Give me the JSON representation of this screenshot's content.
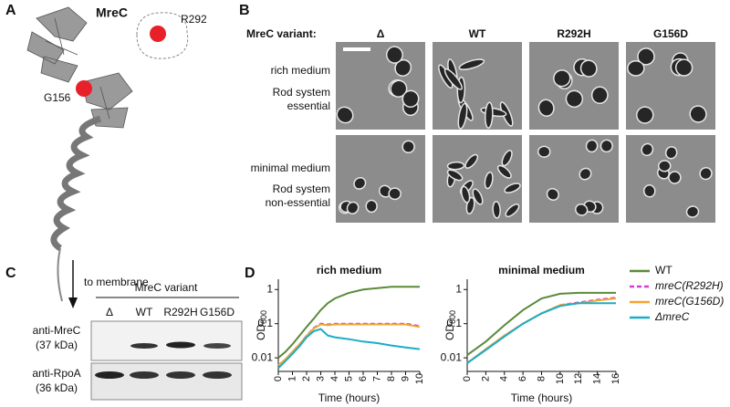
{
  "panel_a": {
    "letter": "A",
    "title": "MreC",
    "sites": [
      "R292",
      "G156"
    ],
    "note": "to membrane"
  },
  "panel_b": {
    "letter": "B",
    "column_header": "MreC variant:",
    "columns": [
      "Δ",
      "WT",
      "R292H",
      "G156D"
    ],
    "rows": [
      {
        "condition": "rich medium",
        "status": [
          "Rod system",
          "essential"
        ]
      },
      {
        "condition": "minimal medium",
        "status": [
          "Rod system",
          "non-essential"
        ]
      }
    ]
  },
  "panel_c": {
    "letter": "C",
    "title": "MreC variant",
    "lanes": [
      "Δ",
      "WT",
      "R292H",
      "G156D"
    ],
    "blots": [
      {
        "antibody": "anti-MreC",
        "size": "(37 kDa)"
      },
      {
        "antibody": "anti-RpoA",
        "size": "(36 kDa)"
      }
    ]
  },
  "panel_d": {
    "letter": "D"
  },
  "chart_data": [
    {
      "type": "line",
      "title": "rich medium",
      "ylabel": [
        "OD",
        "600"
      ],
      "xlabel": "Time (hours)",
      "log_y": true,
      "x": [
        0,
        0.5,
        1,
        1.5,
        2,
        2.5,
        3,
        3.5,
        4,
        5,
        6,
        7,
        8,
        9,
        10
      ],
      "xlim": [
        0,
        10
      ],
      "xticks": [
        0,
        1,
        2,
        3,
        4,
        5,
        6,
        7,
        8,
        9,
        10
      ],
      "ylim": [
        0.004,
        2
      ],
      "yticks": [
        0.01,
        0.1,
        1
      ],
      "legend": "right",
      "series": [
        {
          "name": "WT",
          "color": "#5a8a3a",
          "dashed": false,
          "values": [
            0.01,
            0.015,
            0.025,
            0.045,
            0.08,
            0.14,
            0.25,
            0.4,
            0.55,
            0.8,
            1.0,
            1.1,
            1.2,
            1.2,
            1.2
          ]
        },
        {
          "name": "mreC(R292H)",
          "color": "#d23fd0",
          "dashed": true,
          "values": [
            0.006,
            0.009,
            0.015,
            0.025,
            0.045,
            0.075,
            0.1,
            0.095,
            0.1,
            0.1,
            0.1,
            0.1,
            0.1,
            0.1,
            0.085
          ]
        },
        {
          "name": "mreC(G156D)",
          "color": "#f0a630",
          "dashed": false,
          "values": [
            0.006,
            0.009,
            0.015,
            0.025,
            0.044,
            0.072,
            0.095,
            0.09,
            0.095,
            0.095,
            0.095,
            0.095,
            0.095,
            0.095,
            0.08
          ]
        },
        {
          "name": "ΔmreC",
          "color": "#1aaec6",
          "dashed": false,
          "values": [
            0.005,
            0.008,
            0.013,
            0.022,
            0.04,
            0.06,
            0.07,
            0.045,
            0.04,
            0.035,
            0.03,
            0.027,
            0.023,
            0.02,
            0.018
          ]
        }
      ]
    },
    {
      "type": "line",
      "title": "minimal medium",
      "ylabel": [
        "OD",
        "600"
      ],
      "xlabel": "Time (hours)",
      "log_y": true,
      "x": [
        0,
        2,
        4,
        6,
        8,
        10,
        12,
        14,
        16
      ],
      "xlim": [
        0,
        16
      ],
      "xticks": [
        0,
        2,
        4,
        6,
        8,
        10,
        12,
        14,
        16
      ],
      "ylim": [
        0.004,
        2
      ],
      "yticks": [
        0.01,
        0.1,
        1
      ],
      "series": [
        {
          "color": "#5a8a3a",
          "dashed": false,
          "values": [
            0.012,
            0.03,
            0.09,
            0.25,
            0.55,
            0.75,
            0.8,
            0.8,
            0.8
          ]
        },
        {
          "color": "#d23fd0",
          "dashed": true,
          "values": [
            0.007,
            0.018,
            0.045,
            0.1,
            0.2,
            0.35,
            0.42,
            0.5,
            0.58
          ]
        },
        {
          "color": "#f0a630",
          "dashed": false,
          "values": [
            0.007,
            0.018,
            0.045,
            0.1,
            0.2,
            0.35,
            0.4,
            0.48,
            0.55
          ]
        },
        {
          "color": "#1aaec6",
          "dashed": false,
          "values": [
            0.007,
            0.017,
            0.042,
            0.1,
            0.2,
            0.33,
            0.4,
            0.4,
            0.4
          ]
        }
      ]
    }
  ]
}
